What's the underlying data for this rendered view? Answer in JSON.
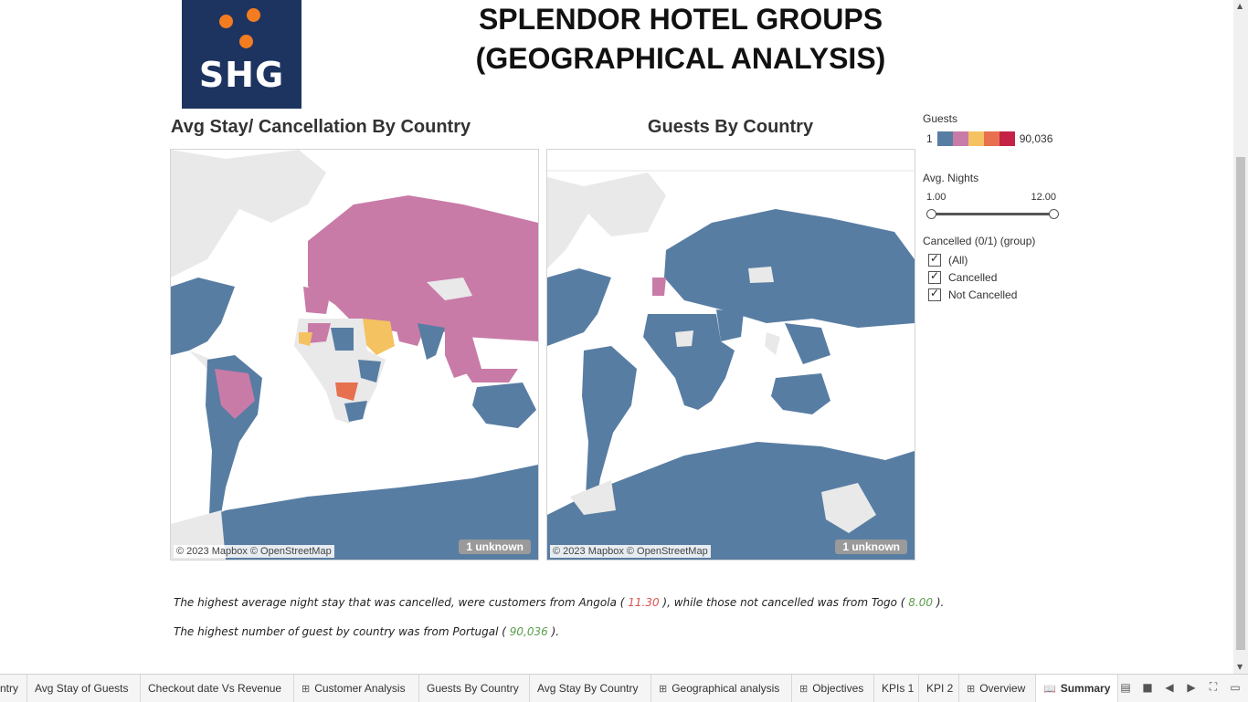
{
  "logo": {
    "text": "SHG"
  },
  "title": "SPLENDOR HOTEL GROUPS (GEOGRAPHICAL ANALYSIS)",
  "maps": [
    {
      "title": "Avg Stay/ Cancellation By Country",
      "attribution": "© 2023 Mapbox © OpenStreetMap",
      "unknown": "1 unknown"
    },
    {
      "title": "Guests By Country",
      "attribution": "© 2023 Mapbox © OpenStreetMap",
      "unknown": "1 unknown"
    }
  ],
  "colors": {
    "steel": "#587da3",
    "pink": "#c97ba8",
    "yellow": "#f5c261",
    "orange": "#e7704f",
    "red": "#c42347",
    "land": "#e9e9e9"
  },
  "legend": {
    "guests": {
      "title": "Guests",
      "min": "1",
      "max": "90,036"
    },
    "avg_nights": {
      "title": "Avg. Nights",
      "min": "1.00",
      "max": "12.00"
    },
    "cancelled": {
      "title": "Cancelled (0/1) (group)",
      "options": [
        "(All)",
        "Cancelled",
        "Not Cancelled"
      ]
    }
  },
  "notes": {
    "line1_a": "The highest average night stay that was cancelled, were customers from Angola ( ",
    "line1_v1": "11.30",
    "line1_b": " ), while those not cancelled was from Togo ( ",
    "line1_v2": "8.00",
    "line1_c": " ).",
    "line2_a": "The highest number of guest by country was from Portugal ( ",
    "line2_v": "90,036",
    "line2_b": " )."
  },
  "tabs": [
    {
      "label": "ntry",
      "icon": ""
    },
    {
      "label": "Avg Stay of Guests",
      "icon": ""
    },
    {
      "label": "Checkout date Vs Revenue",
      "icon": ""
    },
    {
      "label": "Customer Analysis",
      "icon": "grid"
    },
    {
      "label": "Guests By Country",
      "icon": ""
    },
    {
      "label": "Avg Stay By Country",
      "icon": ""
    },
    {
      "label": "Geographical analysis",
      "icon": "grid"
    },
    {
      "label": "Objectives",
      "icon": "grid"
    },
    {
      "label": "KPIs 1",
      "icon": ""
    },
    {
      "label": "KPI 2",
      "icon": ""
    },
    {
      "label": "Overview",
      "icon": "grid"
    },
    {
      "label": "Summary",
      "icon": "book",
      "active": true
    }
  ]
}
